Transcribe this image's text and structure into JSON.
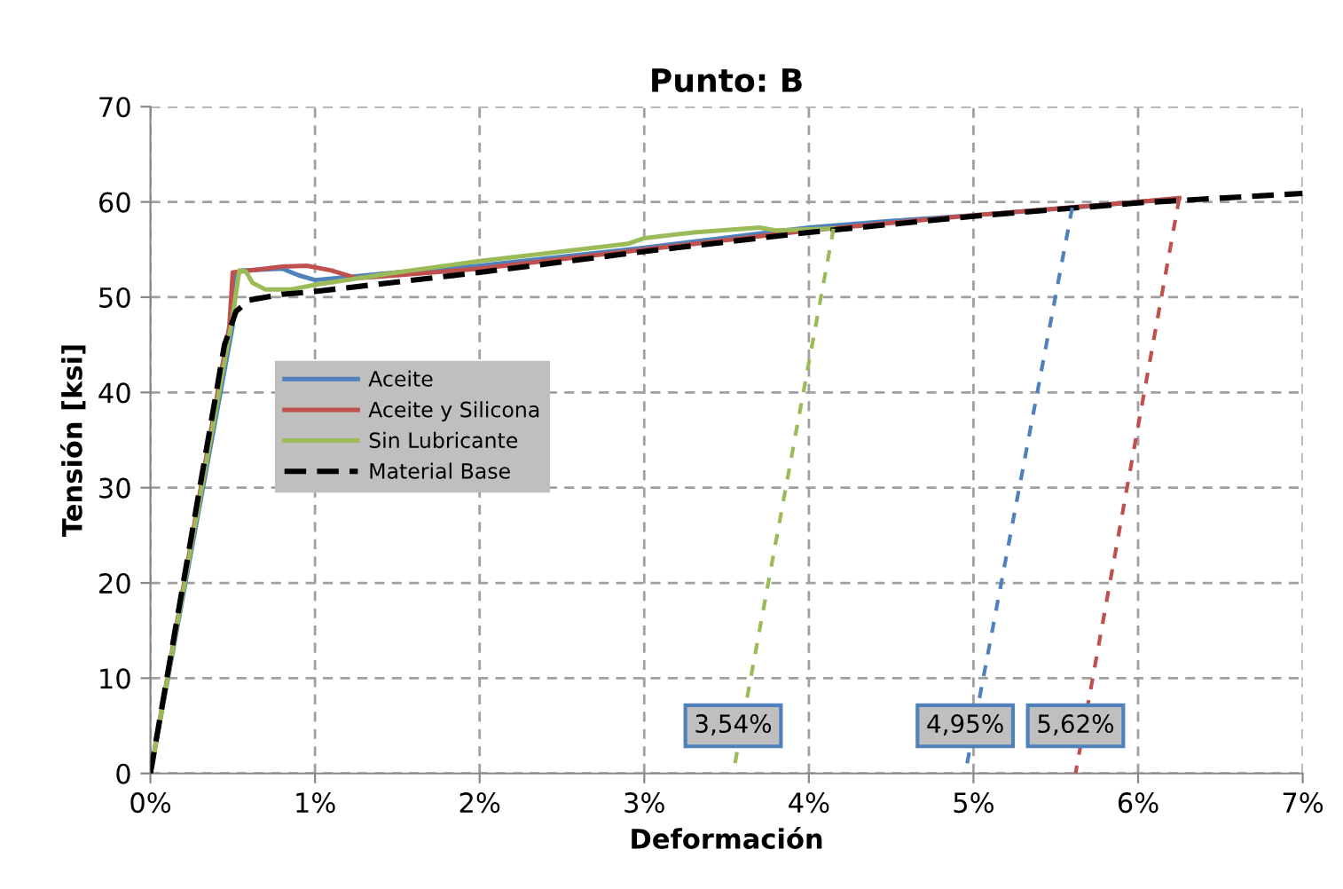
{
  "chart_data": {
    "type": "line",
    "title": "Punto: B",
    "xlabel": "Deformación",
    "ylabel": "Tensión [ksi]",
    "xlim": [
      0,
      7
    ],
    "ylim": [
      0,
      70
    ],
    "xticks": [
      {
        "value": 0,
        "label": "0%"
      },
      {
        "value": 1,
        "label": "1%"
      },
      {
        "value": 2,
        "label": "2%"
      },
      {
        "value": 3,
        "label": "3%"
      },
      {
        "value": 4,
        "label": "4%"
      },
      {
        "value": 5,
        "label": "5%"
      },
      {
        "value": 6,
        "label": "6%"
      },
      {
        "value": 7,
        "label": "7%"
      }
    ],
    "yticks": [
      0,
      10,
      20,
      30,
      40,
      50,
      60,
      70
    ],
    "grid": true,
    "legend": "center left",
    "marker": "none",
    "series": [
      {
        "name": "Aceite",
        "color": "#4f81bd",
        "line_style": "solid",
        "x": [
          0,
          0.5,
          0.52,
          0.55,
          0.8,
          0.9,
          1.0,
          1.5,
          2,
          3,
          4,
          4.5,
          5,
          5.6,
          6.2
        ],
        "values": [
          0,
          47,
          52.5,
          52.8,
          53,
          52.3,
          51.8,
          52.6,
          53.3,
          55.2,
          57.3,
          58.0,
          58.6,
          59.4,
          60.3
        ]
      },
      {
        "name": "Aceite y Silicona",
        "color": "#c0504d",
        "line_style": "solid",
        "x": [
          0,
          0.48,
          0.5,
          0.6,
          0.8,
          0.95,
          1.1,
          1.25,
          1.5,
          2,
          3,
          4,
          5,
          6,
          6.25
        ],
        "values": [
          0,
          47,
          52.6,
          52.8,
          53.2,
          53.3,
          52.8,
          52,
          52.3,
          53,
          55,
          57,
          58.6,
          60,
          60.4
        ]
      },
      {
        "name": "Sin Lubricante",
        "color": "#9bbb59",
        "line_style": "solid",
        "x": [
          0,
          0.5,
          0.54,
          0.58,
          0.62,
          0.7,
          0.85,
          1.0,
          1.5,
          2,
          2.5,
          2.9,
          3.0,
          3.3,
          3.7,
          3.8,
          4.15
        ],
        "values": [
          0,
          48,
          52.8,
          52.7,
          51.5,
          50.8,
          50.8,
          51.3,
          52.6,
          53.8,
          54.8,
          55.6,
          56.2,
          56.8,
          57.3,
          57.0,
          57.2
        ]
      },
      {
        "name": "Material Base",
        "color": "#000000",
        "line_style": "dashed",
        "x": [
          0,
          0.45,
          0.52,
          0.6,
          0.8,
          1,
          2,
          3,
          4,
          5,
          6,
          7
        ],
        "values": [
          0,
          45,
          48.5,
          49.7,
          50.3,
          50.6,
          52.6,
          54.8,
          56.8,
          58.5,
          59.9,
          60.9
        ]
      },
      {
        "color": "#9bbb59",
        "line_style": "dashed",
        "x": [
          4.15,
          3.54
        ],
        "values": [
          57.2,
          0
        ]
      },
      {
        "color": "#4f81bd",
        "line_style": "dashed",
        "x": [
          5.6,
          4.95
        ],
        "values": [
          59.4,
          0
        ]
      },
      {
        "color": "#c0504d",
        "line_style": "dashed",
        "x": [
          6.25,
          5.62
        ],
        "values": [
          60.4,
          0
        ]
      }
    ],
    "annotations": [
      {
        "text": "3,54%",
        "x": 3.54,
        "y": 5
      },
      {
        "text": "4,95%",
        "x": 4.95,
        "y": 5
      },
      {
        "text": "5,62%",
        "x": 5.62,
        "y": 5
      }
    ]
  }
}
